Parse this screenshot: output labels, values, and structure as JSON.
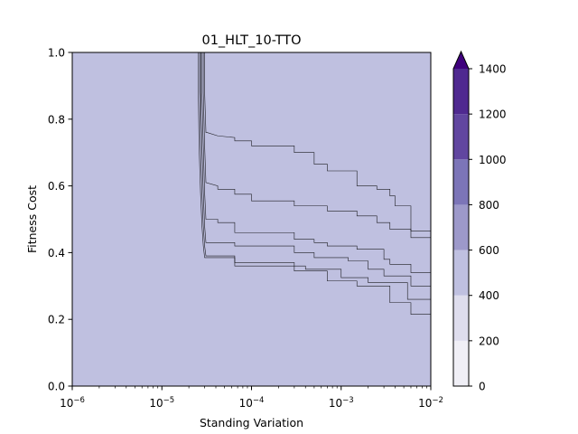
{
  "chart_data": {
    "type": "contour",
    "title": "01_HLT_10-TTO",
    "xlabel": "Standing Variation",
    "ylabel": "Fitness Cost",
    "xscale": "log",
    "xlim": [
      1e-06,
      0.01
    ],
    "ylim": [
      0.0,
      1.0
    ],
    "x_ticks": [
      {
        "value": 1e-06,
        "base": "10",
        "exp": "−6"
      },
      {
        "value": 1e-05,
        "base": "10",
        "exp": "−5"
      },
      {
        "value": 0.0001,
        "base": "10",
        "exp": "−4"
      },
      {
        "value": 0.001,
        "base": "10",
        "exp": "−3"
      },
      {
        "value": 0.01,
        "base": "10",
        "exp": "−2"
      }
    ],
    "y_ticks": [
      "0.0",
      "0.2",
      "0.4",
      "0.6",
      "0.8",
      "1.0"
    ],
    "colorbar": {
      "levels": [
        0,
        200,
        400,
        600,
        800,
        1000,
        1200,
        1400
      ],
      "tick_labels": [
        "0",
        "200",
        "400",
        "600",
        "800",
        "1000",
        "1200",
        "1400"
      ],
      "colors": [
        "#f0eff6",
        "#dedded",
        "#bfc0e0",
        "#9d99ca",
        "#7c75b8",
        "#6146a0",
        "#4f2990"
      ],
      "extend_color": "#3f007d",
      "extend": "max"
    },
    "regions": [
      {
        "level_range": "above 1400",
        "color": "#3f007d",
        "upper_boundary": [
          [
            2.55e-05,
            1.0
          ],
          [
            2.55e-05,
            0.88
          ],
          [
            2.6e-05,
            0.72
          ],
          [
            2.7e-05,
            0.58
          ],
          [
            2.8e-05,
            0.48
          ],
          [
            2.9e-05,
            0.42
          ],
          [
            3e-05,
            0.385
          ],
          [
            6.5e-05,
            0.385
          ],
          [
            6.5e-05,
            0.37
          ],
          [
            0.0003,
            0.37
          ],
          [
            0.0003,
            0.345
          ],
          [
            0.0007,
            0.345
          ],
          [
            0.0007,
            0.315
          ],
          [
            0.0015,
            0.315
          ],
          [
            0.0015,
            0.3
          ],
          [
            0.0035,
            0.3
          ],
          [
            0.0035,
            0.25
          ],
          [
            0.006,
            0.25
          ],
          [
            0.006,
            0.215
          ],
          [
            0.01,
            0.215
          ]
        ]
      },
      {
        "level_range": "1200-1400",
        "color": "#4f2990",
        "upper_boundary": [
          [
            2.65e-05,
            1.0
          ],
          [
            2.65e-05,
            0.88
          ],
          [
            2.7e-05,
            0.72
          ],
          [
            2.8e-05,
            0.58
          ],
          [
            2.9e-05,
            0.48
          ],
          [
            3e-05,
            0.42
          ],
          [
            3.1e-05,
            0.39
          ],
          [
            6.5e-05,
            0.39
          ],
          [
            6.5e-05,
            0.36
          ],
          [
            0.0004,
            0.36
          ],
          [
            0.0004,
            0.35
          ],
          [
            0.001,
            0.35
          ],
          [
            0.001,
            0.325
          ],
          [
            0.002,
            0.325
          ],
          [
            0.002,
            0.31
          ],
          [
            0.0055,
            0.31
          ],
          [
            0.0055,
            0.26
          ],
          [
            0.01,
            0.26
          ]
        ]
      },
      {
        "level_range": "1000-1200",
        "color": "#6146a0",
        "upper_boundary": [
          [
            2.7e-05,
            1.0
          ],
          [
            2.7e-05,
            0.88
          ],
          [
            2.8e-05,
            0.72
          ],
          [
            2.9e-05,
            0.58
          ],
          [
            3e-05,
            0.48
          ],
          [
            3.1e-05,
            0.43
          ],
          [
            6.5e-05,
            0.43
          ],
          [
            6.5e-05,
            0.42
          ],
          [
            0.0003,
            0.42
          ],
          [
            0.0003,
            0.4
          ],
          [
            0.0005,
            0.4
          ],
          [
            0.0005,
            0.385
          ],
          [
            0.0012,
            0.385
          ],
          [
            0.0012,
            0.375
          ],
          [
            0.002,
            0.375
          ],
          [
            0.002,
            0.35
          ],
          [
            0.003,
            0.35
          ],
          [
            0.003,
            0.33
          ],
          [
            0.006,
            0.33
          ],
          [
            0.006,
            0.3
          ],
          [
            0.01,
            0.3
          ]
        ]
      },
      {
        "level_range": "800-1000",
        "color": "#7c75b8",
        "upper_boundary": [
          [
            2.8e-05,
            1.0
          ],
          [
            2.8e-05,
            0.88
          ],
          [
            2.9e-05,
            0.72
          ],
          [
            3e-05,
            0.58
          ],
          [
            3.1e-05,
            0.5
          ],
          [
            4.2e-05,
            0.5
          ],
          [
            4.2e-05,
            0.49
          ],
          [
            6.5e-05,
            0.49
          ],
          [
            6.5e-05,
            0.46
          ],
          [
            0.0003,
            0.46
          ],
          [
            0.0003,
            0.44
          ],
          [
            0.0005,
            0.44
          ],
          [
            0.0005,
            0.43
          ],
          [
            0.0007,
            0.43
          ],
          [
            0.0007,
            0.42
          ],
          [
            0.0015,
            0.42
          ],
          [
            0.0015,
            0.41
          ],
          [
            0.003,
            0.41
          ],
          [
            0.003,
            0.38
          ],
          [
            0.0035,
            0.38
          ],
          [
            0.0035,
            0.365
          ],
          [
            0.006,
            0.365
          ],
          [
            0.006,
            0.34
          ],
          [
            0.01,
            0.34
          ]
        ]
      },
      {
        "level_range": "600-800",
        "color": "#9d99ca",
        "upper_boundary": [
          [
            2.9e-05,
            1.0
          ],
          [
            2.9e-05,
            0.88
          ],
          [
            3e-05,
            0.72
          ],
          [
            3.1e-05,
            0.61
          ],
          [
            4.2e-05,
            0.6
          ],
          [
            4.2e-05,
            0.59
          ],
          [
            6.5e-05,
            0.59
          ],
          [
            6.5e-05,
            0.575
          ],
          [
            0.0001,
            0.575
          ],
          [
            0.0001,
            0.555
          ],
          [
            0.0003,
            0.555
          ],
          [
            0.0003,
            0.54
          ],
          [
            0.0007,
            0.54
          ],
          [
            0.0007,
            0.525
          ],
          [
            0.0015,
            0.525
          ],
          [
            0.0015,
            0.51
          ],
          [
            0.0025,
            0.51
          ],
          [
            0.0025,
            0.49
          ],
          [
            0.0035,
            0.49
          ],
          [
            0.0035,
            0.47
          ],
          [
            0.006,
            0.47
          ],
          [
            0.006,
            0.445
          ],
          [
            0.01,
            0.445
          ]
        ]
      },
      {
        "level_range": "400-600",
        "color": "#bfc0e0",
        "upper_boundary": [
          [
            3e-05,
            1.0
          ],
          [
            3e-05,
            0.88
          ],
          [
            3.1e-05,
            0.76
          ],
          [
            3.2e-05,
            0.76
          ],
          [
            4.2e-05,
            0.75
          ],
          [
            6.5e-05,
            0.745
          ],
          [
            6.5e-05,
            0.735
          ],
          [
            0.0001,
            0.735
          ],
          [
            0.0001,
            0.72
          ],
          [
            0.0003,
            0.72
          ],
          [
            0.0003,
            0.7
          ],
          [
            0.0005,
            0.7
          ],
          [
            0.0005,
            0.665
          ],
          [
            0.0007,
            0.665
          ],
          [
            0.0007,
            0.645
          ],
          [
            0.0015,
            0.645
          ],
          [
            0.0015,
            0.6
          ],
          [
            0.0025,
            0.6
          ],
          [
            0.0025,
            0.59
          ],
          [
            0.0035,
            0.59
          ],
          [
            0.0035,
            0.57
          ],
          [
            0.004,
            0.57
          ],
          [
            0.004,
            0.54
          ],
          [
            0.006,
            0.54
          ],
          [
            0.006,
            0.465
          ],
          [
            0.01,
            0.465
          ]
        ]
      }
    ],
    "grid": false,
    "legend": "colorbar-right"
  }
}
